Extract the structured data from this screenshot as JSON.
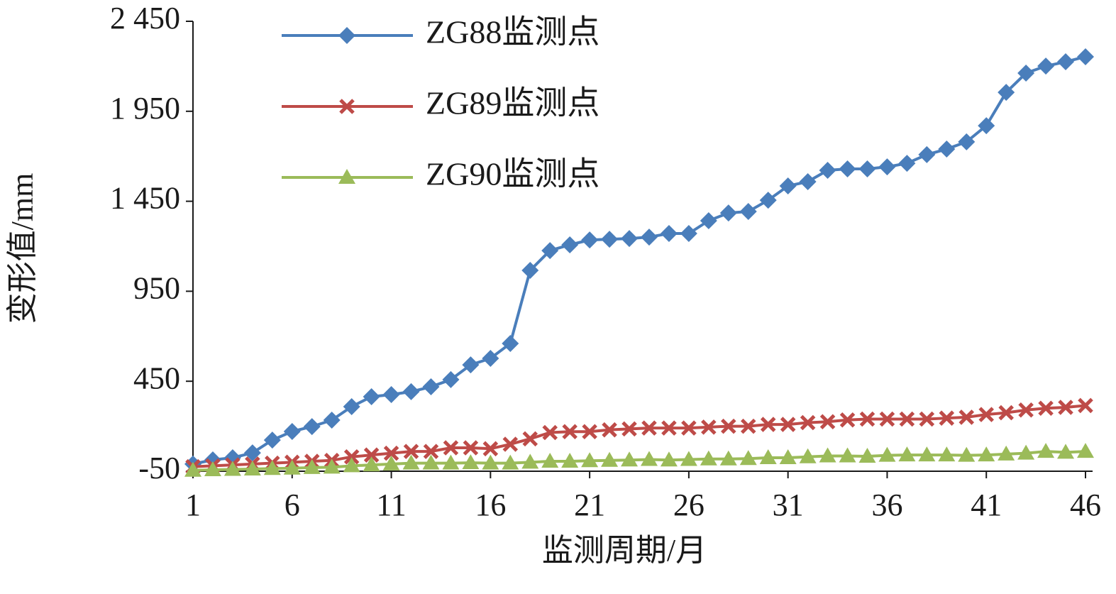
{
  "chart_data": {
    "type": "line",
    "x_label": "监测周期/月",
    "y_label": "变形值/mm",
    "x": [
      1,
      2,
      3,
      4,
      5,
      6,
      7,
      8,
      9,
      10,
      11,
      12,
      13,
      14,
      15,
      16,
      17,
      18,
      19,
      20,
      21,
      22,
      23,
      24,
      25,
      26,
      27,
      28,
      29,
      30,
      31,
      32,
      33,
      34,
      35,
      36,
      37,
      38,
      39,
      40,
      41,
      42,
      43,
      44,
      45,
      46
    ],
    "xlim": [
      1,
      46
    ],
    "xticks": [
      1,
      6,
      11,
      16,
      21,
      26,
      31,
      36,
      41,
      46
    ],
    "ylim": [
      -50,
      2450
    ],
    "yticks": [
      -50,
      450,
      950,
      {
        "value": 1450,
        "label": "1 450"
      },
      {
        "value": 1950,
        "label": "1 950"
      },
      {
        "value": 2450,
        "label": "2 450"
      }
    ],
    "grid": false,
    "legend": "upper left",
    "series": [
      {
        "name": "ZG88监测点",
        "color": "#4a7ebb",
        "marker": "diamond",
        "values": [
          -10,
          13,
          25,
          52,
          123,
          171,
          198,
          234,
          309,
          364,
          376,
          392,
          419,
          459,
          541,
          577,
          660,
          1066,
          1176,
          1208,
          1235,
          1239,
          1243,
          1251,
          1271,
          1271,
          1342,
          1385,
          1393,
          1456,
          1535,
          1559,
          1622,
          1630,
          1630,
          1641,
          1661,
          1709,
          1740,
          1780,
          1870,
          2055,
          2162,
          2201,
          2225,
          2253
        ]
      },
      {
        "name": "ZG89监测点",
        "color": "#be4b48",
        "marker": "x",
        "values": [
          -25,
          -20,
          -15,
          -10,
          -5,
          0,
          5,
          10,
          30,
          40,
          50,
          60,
          60,
          80,
          80,
          75,
          100,
          130,
          165,
          170,
          170,
          180,
          185,
          190,
          190,
          190,
          195,
          200,
          200,
          210,
          210,
          220,
          225,
          235,
          240,
          240,
          240,
          240,
          245,
          250,
          265,
          275,
          290,
          300,
          305,
          315
        ]
      },
      {
        "name": "ZG90监测点",
        "color": "#9bbb59",
        "marker": "triangle",
        "values": [
          -45,
          -42,
          -40,
          -38,
          -35,
          -33,
          -30,
          -28,
          -20,
          -15,
          -10,
          -5,
          -5,
          -5,
          -3,
          -5,
          -5,
          0,
          5,
          5,
          8,
          10,
          12,
          15,
          12,
          15,
          18,
          18,
          20,
          25,
          25,
          30,
          35,
          35,
          33,
          38,
          40,
          40,
          40,
          38,
          40,
          45,
          50,
          60,
          55,
          60
        ]
      }
    ]
  }
}
